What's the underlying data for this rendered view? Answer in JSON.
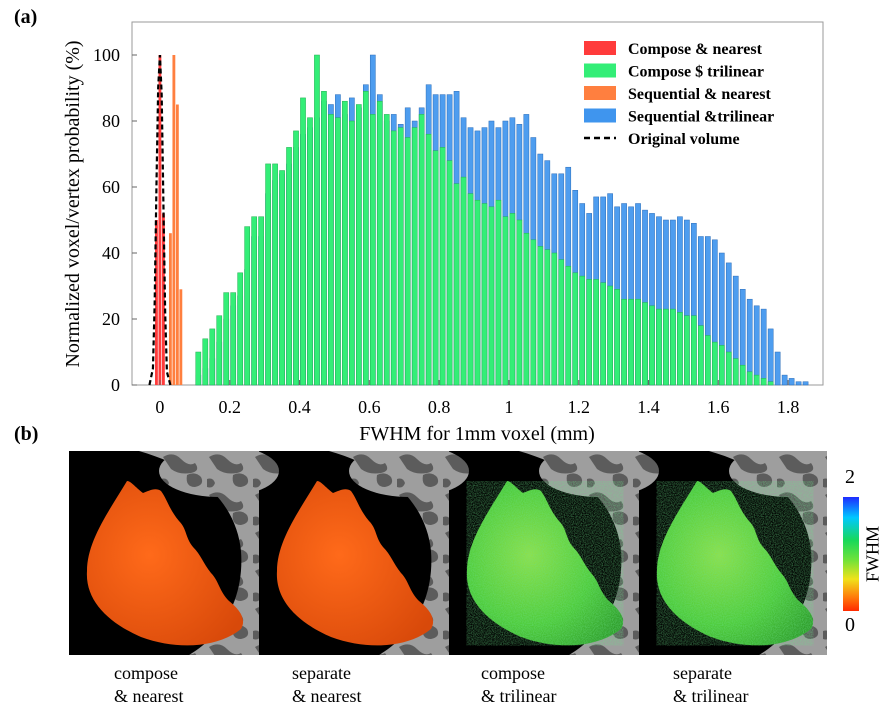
{
  "panel_labels": {
    "a": "(a)",
    "b": "(b)"
  },
  "chart_data": {
    "type": "bar",
    "title": "",
    "xlabel": "FWHM for 1mm voxel (mm)",
    "ylabel": "Normalized voxel/vertex probability (%)",
    "xlim": [
      -0.08,
      1.9
    ],
    "ylim": [
      0,
      110
    ],
    "xticks": [
      "0",
      "0.2",
      "0.4",
      "0.6",
      "0.8",
      "1",
      "1.2",
      "1.4",
      "1.6",
      "1.8"
    ],
    "xtick_values": [
      0,
      0.2,
      0.4,
      0.6,
      0.8,
      1.0,
      1.2,
      1.4,
      1.6,
      1.8
    ],
    "yticks": [
      "0",
      "20",
      "40",
      "60",
      "80",
      "100"
    ],
    "ytick_values": [
      0,
      20,
      40,
      60,
      80,
      100
    ],
    "bin_width": 0.018,
    "legend_position": "top-right",
    "series": [
      {
        "name": "Compose & nearest",
        "color": "#ff3b3b",
        "x": [
          -0.01,
          0.0,
          0.01
        ],
        "values": [
          50,
          100,
          52
        ]
      },
      {
        "name": "Compose $ trilinear",
        "color": "#33ee77",
        "x": [
          0.11,
          0.13,
          0.15,
          0.17,
          0.19,
          0.21,
          0.23,
          0.25,
          0.27,
          0.29,
          0.31,
          0.33,
          0.35,
          0.37,
          0.39,
          0.41,
          0.43,
          0.45,
          0.47,
          0.49,
          0.51,
          0.53,
          0.55,
          0.57,
          0.59,
          0.61,
          0.63,
          0.65,
          0.67,
          0.69,
          0.71,
          0.73,
          0.75,
          0.77,
          0.79,
          0.81,
          0.83,
          0.85,
          0.87,
          0.89,
          0.91,
          0.93,
          0.95,
          0.97,
          0.99,
          1.01,
          1.03,
          1.05,
          1.07,
          1.09,
          1.11,
          1.13,
          1.15,
          1.17,
          1.19,
          1.21,
          1.23,
          1.25,
          1.27,
          1.29,
          1.31,
          1.33,
          1.35,
          1.37,
          1.39,
          1.41,
          1.43,
          1.45,
          1.47,
          1.49,
          1.51,
          1.53,
          1.55,
          1.57,
          1.59,
          1.61,
          1.63,
          1.65,
          1.67,
          1.69,
          1.71,
          1.73,
          1.75
        ],
        "values": [
          10,
          14,
          17,
          21,
          28,
          28,
          34,
          48,
          51,
          51,
          67,
          67,
          65,
          72,
          77,
          87,
          81,
          100,
          89,
          82,
          81,
          86,
          80,
          85,
          89,
          82,
          86,
          82,
          77,
          78,
          75,
          78,
          82,
          76,
          71,
          72,
          68,
          61,
          63,
          58,
          56,
          55,
          54,
          56,
          51,
          52,
          50,
          46,
          44,
          42,
          41,
          40,
          38,
          36,
          34,
          33,
          32,
          32,
          31,
          30,
          29,
          26,
          26,
          26,
          25,
          24,
          23,
          23,
          23,
          22,
          21,
          21,
          18,
          15,
          13,
          12,
          10,
          8,
          6,
          4,
          3,
          2,
          1
        ]
      },
      {
        "name": "Sequential & nearest",
        "color": "#ff7f3f",
        "x": [
          0.03,
          0.04,
          0.05,
          0.06
        ],
        "values": [
          46,
          100,
          85,
          29
        ]
      },
      {
        "name": "Sequential &trilinear",
        "color": "#3f95ee",
        "x": [
          0.11,
          0.13,
          0.15,
          0.17,
          0.19,
          0.21,
          0.23,
          0.25,
          0.27,
          0.29,
          0.31,
          0.33,
          0.35,
          0.37,
          0.39,
          0.41,
          0.43,
          0.45,
          0.47,
          0.49,
          0.51,
          0.53,
          0.55,
          0.57,
          0.59,
          0.61,
          0.63,
          0.65,
          0.67,
          0.69,
          0.71,
          0.73,
          0.75,
          0.77,
          0.79,
          0.81,
          0.83,
          0.85,
          0.87,
          0.89,
          0.91,
          0.93,
          0.95,
          0.97,
          0.99,
          1.01,
          1.03,
          1.05,
          1.07,
          1.09,
          1.11,
          1.13,
          1.15,
          1.17,
          1.19,
          1.21,
          1.23,
          1.25,
          1.27,
          1.29,
          1.31,
          1.33,
          1.35,
          1.37,
          1.39,
          1.41,
          1.43,
          1.45,
          1.47,
          1.49,
          1.51,
          1.53,
          1.55,
          1.57,
          1.59,
          1.61,
          1.63,
          1.65,
          1.67,
          1.69,
          1.71,
          1.73,
          1.75,
          1.77,
          1.79,
          1.81,
          1.83,
          1.85
        ],
        "values": [
          3,
          5,
          8,
          13,
          20,
          24,
          27,
          35,
          45,
          45,
          58,
          62,
          64,
          67,
          72,
          76,
          78,
          81,
          86,
          85,
          88,
          82,
          87,
          84,
          91,
          100,
          88,
          80,
          82,
          79,
          84,
          80,
          84,
          91,
          88,
          88,
          88,
          89,
          81,
          78,
          77,
          78,
          80,
          78,
          80,
          81,
          79,
          82,
          75,
          70,
          68,
          64,
          64,
          66,
          59,
          55,
          52,
          57,
          57,
          58,
          54,
          55,
          54,
          55,
          53,
          52,
          51,
          50,
          50,
          51,
          50,
          49,
          45,
          45,
          44,
          40,
          37,
          33,
          29,
          26,
          24,
          23,
          17,
          10,
          3,
          2,
          1,
          1
        ]
      },
      {
        "name": "Original volume",
        "color": "#000000",
        "style": "dashed",
        "x": [
          -0.03,
          -0.02,
          -0.015,
          -0.01,
          -0.005,
          0.0,
          0.005,
          0.01,
          0.015,
          0.02,
          0.03
        ],
        "values": [
          0,
          5,
          25,
          60,
          90,
          100,
          88,
          55,
          22,
          4,
          0
        ]
      }
    ]
  },
  "panel_b": {
    "images": [
      {
        "caption_line1": "compose",
        "caption_line2": "& nearest"
      },
      {
        "caption_line1": "separate",
        "caption_line2": "& nearest"
      },
      {
        "caption_line1": "compose",
        "caption_line2": "& trilinear"
      },
      {
        "caption_line1": "separate",
        "caption_line2": "& trilinear"
      }
    ],
    "colorbar": {
      "label": "FWHM",
      "max_label": "2",
      "min_label": "0"
    }
  }
}
